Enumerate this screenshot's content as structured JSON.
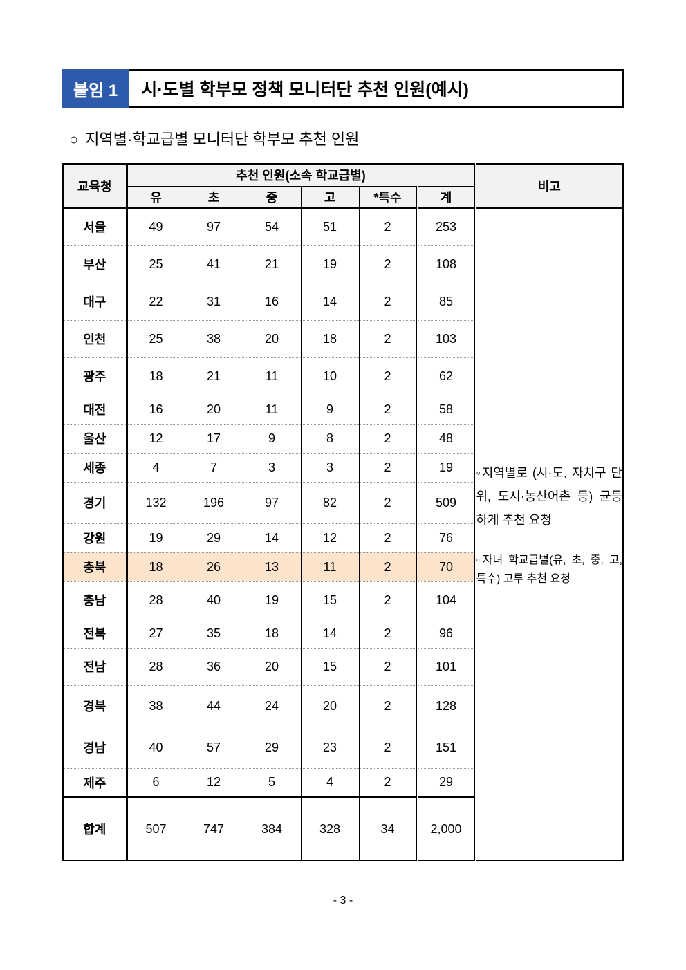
{
  "badge": "붙임 1",
  "title": "시·도별 학부모 정책 모니터단 추천 인원(예시)",
  "subtitle_bullet": "○",
  "subtitle": "지역별·학교급별 모니터단 학부모 추천 인원",
  "table": {
    "header_edu": "교육청",
    "header_group": "추천 인원(소속 학교급별)",
    "header_note": "비고",
    "sub_headers": [
      "유",
      "초",
      "중",
      "고",
      "*특수",
      "계"
    ],
    "rows": [
      {
        "label": "서울",
        "vals": [
          "49",
          "97",
          "54",
          "51",
          "2",
          "253"
        ],
        "h": "tall"
      },
      {
        "label": "부산",
        "vals": [
          "25",
          "41",
          "21",
          "19",
          "2",
          "108"
        ],
        "h": "tall"
      },
      {
        "label": "대구",
        "vals": [
          "22",
          "31",
          "16",
          "14",
          "2",
          "85"
        ],
        "h": "tall"
      },
      {
        "label": "인천",
        "vals": [
          "25",
          "38",
          "20",
          "18",
          "2",
          "103"
        ],
        "h": "tall"
      },
      {
        "label": "광주",
        "vals": [
          "18",
          "21",
          "11",
          "10",
          "2",
          "62"
        ],
        "h": "tall"
      },
      {
        "label": "대전",
        "vals": [
          "16",
          "20",
          "11",
          "9",
          "2",
          "58"
        ],
        "h": "compact"
      },
      {
        "label": "울산",
        "vals": [
          "12",
          "17",
          "9",
          "8",
          "2",
          "48"
        ],
        "h": "compact"
      },
      {
        "label": "세종",
        "vals": [
          "4",
          "7",
          "3",
          "3",
          "2",
          "19"
        ],
        "h": "compact"
      },
      {
        "label": "경기",
        "vals": [
          "132",
          "196",
          "97",
          "82",
          "2",
          "509"
        ],
        "h": "taller"
      },
      {
        "label": "강원",
        "vals": [
          "19",
          "29",
          "14",
          "12",
          "2",
          "76"
        ],
        "h": "compact"
      },
      {
        "label": "충북",
        "vals": [
          "18",
          "26",
          "13",
          "11",
          "2",
          "70"
        ],
        "h": "compact",
        "highlight": true
      },
      {
        "label": "충남",
        "vals": [
          "28",
          "40",
          "19",
          "15",
          "2",
          "104"
        ],
        "h": "tall"
      },
      {
        "label": "전북",
        "vals": [
          "27",
          "35",
          "18",
          "14",
          "2",
          "96"
        ],
        "h": "compact"
      },
      {
        "label": "전남",
        "vals": [
          "28",
          "36",
          "20",
          "15",
          "2",
          "101"
        ],
        "h": "tall"
      },
      {
        "label": "경북",
        "vals": [
          "38",
          "44",
          "24",
          "20",
          "2",
          "128"
        ],
        "h": "taller"
      },
      {
        "label": "경남",
        "vals": [
          "40",
          "57",
          "29",
          "23",
          "2",
          "151"
        ],
        "h": "taller"
      },
      {
        "label": "제주",
        "vals": [
          "6",
          "12",
          "5",
          "4",
          "2",
          "29"
        ],
        "h": "compact"
      }
    ],
    "total_label": "합계",
    "total_vals": [
      "507",
      "747",
      "384",
      "328",
      "34",
      "2,000"
    ],
    "note1": "◦지역별로 (시·도, 자치구 단위, 도시·농산어촌 등) 균등하게 추천 요청",
    "note2": "◦자녀 학교급별(유, 초, 중, 고, 특수) 고루 추천 요청"
  },
  "page_number": "- 3 -",
  "colors": {
    "badge_bg": "#2e5aac",
    "highlight_bg": "#fce3cb",
    "header_bg": "#f2f2f2"
  }
}
